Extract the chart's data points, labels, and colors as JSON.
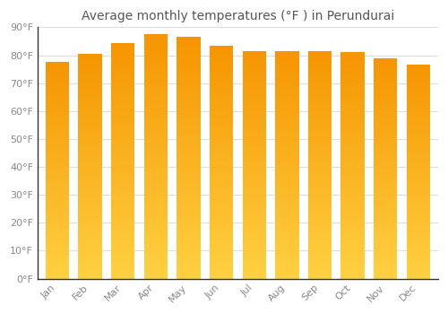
{
  "title": "Average monthly temperatures (°F ) in Perundurai",
  "months": [
    "Jan",
    "Feb",
    "Mar",
    "Apr",
    "May",
    "Jun",
    "Jul",
    "Aug",
    "Sep",
    "Oct",
    "Nov",
    "Dec"
  ],
  "values": [
    77.5,
    80.5,
    84.5,
    87.5,
    86.5,
    83.5,
    81.5,
    81.5,
    81.5,
    81.0,
    79.0,
    76.5
  ],
  "bar_color_bottom": "#FFD040",
  "bar_color_top": "#F59400",
  "background_color": "#FFFFFF",
  "grid_color": "#DDDDDD",
  "spine_color": "#333333",
  "ylim": [
    0,
    90
  ],
  "yticks": [
    0,
    10,
    20,
    30,
    40,
    50,
    60,
    70,
    80,
    90
  ],
  "ytick_labels": [
    "0°F",
    "10°F",
    "20°F",
    "30°F",
    "40°F",
    "50°F",
    "60°F",
    "70°F",
    "80°F",
    "90°F"
  ],
  "title_fontsize": 10,
  "tick_fontsize": 8,
  "tick_color": "#888888",
  "bar_width": 0.72,
  "n_grad": 80
}
